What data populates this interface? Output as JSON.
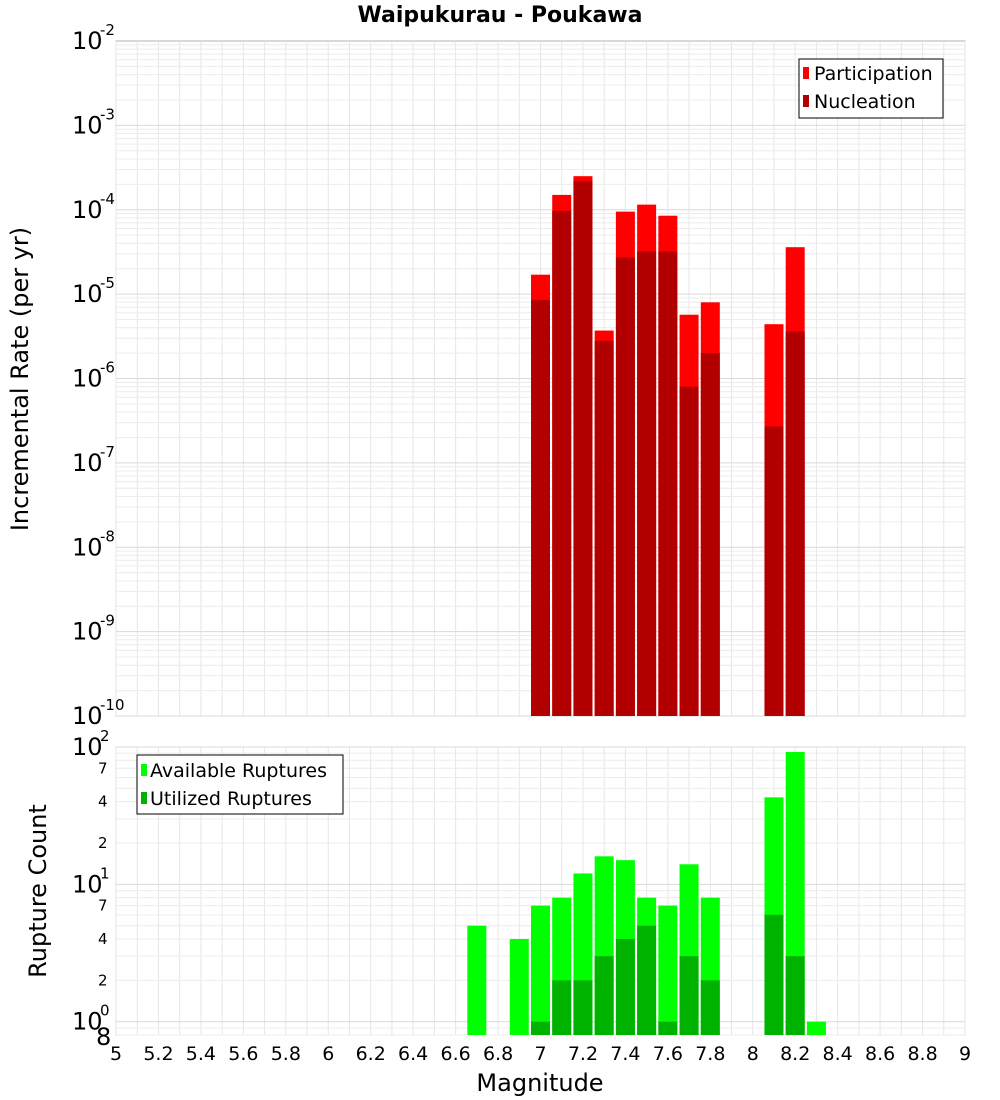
{
  "chart_data": [
    {
      "type": "bar",
      "title": "Waipukurau - Poukawa",
      "ylabel": "Incremental Rate (per yr)",
      "xlabel": "",
      "y_scale": "log",
      "ylim": [
        1e-10,
        0.01
      ],
      "xlim": [
        5,
        9
      ],
      "grid": true,
      "legend_position": "top-right",
      "legend": [
        "Participation",
        "Nucleation"
      ],
      "y_ticks": [
        {
          "base": "10",
          "exp": "-2"
        },
        {
          "base": "10",
          "exp": "-3"
        },
        {
          "base": "10",
          "exp": "-4"
        },
        {
          "base": "10",
          "exp": "-5"
        },
        {
          "base": "10",
          "exp": "-6"
        },
        {
          "base": "10",
          "exp": "-7"
        },
        {
          "base": "10",
          "exp": "-8"
        },
        {
          "base": "10",
          "exp": "-9"
        },
        {
          "base": "10",
          "exp": "-10"
        }
      ],
      "x": [
        7.0,
        7.1,
        7.2,
        7.3,
        7.4,
        7.5,
        7.6,
        7.7,
        7.8,
        8.1,
        8.2
      ],
      "series": [
        {
          "name": "Participation",
          "color": "#ff0000",
          "values": [
            1.7e-05,
            0.00015,
            0.00025,
            3.7e-06,
            9.5e-05,
            0.000115,
            8.5e-05,
            5.7e-06,
            8e-06,
            4.4e-06,
            3.6e-05
          ]
        },
        {
          "name": "Nucleation",
          "color": "#b20000",
          "values": [
            8.5e-06,
            9.7e-05,
            0.00022,
            2.8e-06,
            2.7e-05,
            3.2e-05,
            3.2e-05,
            8e-07,
            2e-06,
            2.7e-07,
            3.6e-06
          ]
        }
      ]
    },
    {
      "type": "bar",
      "title": "",
      "ylabel": "Rupture Count",
      "xlabel": "Magnitude",
      "y_scale": "log",
      "ylim": [
        0.8,
        100
      ],
      "xlim": [
        5,
        9
      ],
      "grid": true,
      "legend_position": "top-left",
      "legend": [
        "Available Ruptures",
        "Utilized Ruptures"
      ],
      "x_ticks": [
        "5",
        "5.2",
        "5.4",
        "5.6",
        "5.8",
        "6",
        "6.2",
        "6.4",
        "6.6",
        "6.8",
        "7",
        "7.2",
        "7.4",
        "7.6",
        "7.8",
        "8",
        "8.2",
        "8.4",
        "8.6",
        "8.8",
        "9"
      ],
      "y_major_ticks": [
        {
          "base": "10",
          "exp": "2",
          "value": 100
        },
        {
          "base": "10",
          "exp": "1",
          "value": 10
        },
        {
          "base": "10",
          "exp": "0",
          "value": 1
        }
      ],
      "y_minor_ticks": [
        {
          "label": "7",
          "value": 70
        },
        {
          "label": "4",
          "value": 40
        },
        {
          "label": "2",
          "value": 20
        },
        {
          "label": "7",
          "value": 7
        },
        {
          "label": "4",
          "value": 4
        },
        {
          "label": "2",
          "value": 2
        },
        {
          "label": "8",
          "value": 0.8
        }
      ],
      "x": [
        6.7,
        6.9,
        7.0,
        7.1,
        7.2,
        7.3,
        7.4,
        7.5,
        7.6,
        7.7,
        7.8,
        8.1,
        8.2,
        8.3
      ],
      "series": [
        {
          "name": "Available Ruptures",
          "color": "#00ff00",
          "values": [
            5,
            4,
            7,
            8,
            12,
            16,
            15,
            8,
            7,
            14,
            8,
            43,
            92,
            1
          ]
        },
        {
          "name": "Utilized Ruptures",
          "color": "#00b200",
          "values": [
            null,
            null,
            1,
            2,
            2,
            3,
            4,
            5,
            1,
            3,
            2,
            6,
            3,
            null
          ]
        }
      ]
    }
  ]
}
